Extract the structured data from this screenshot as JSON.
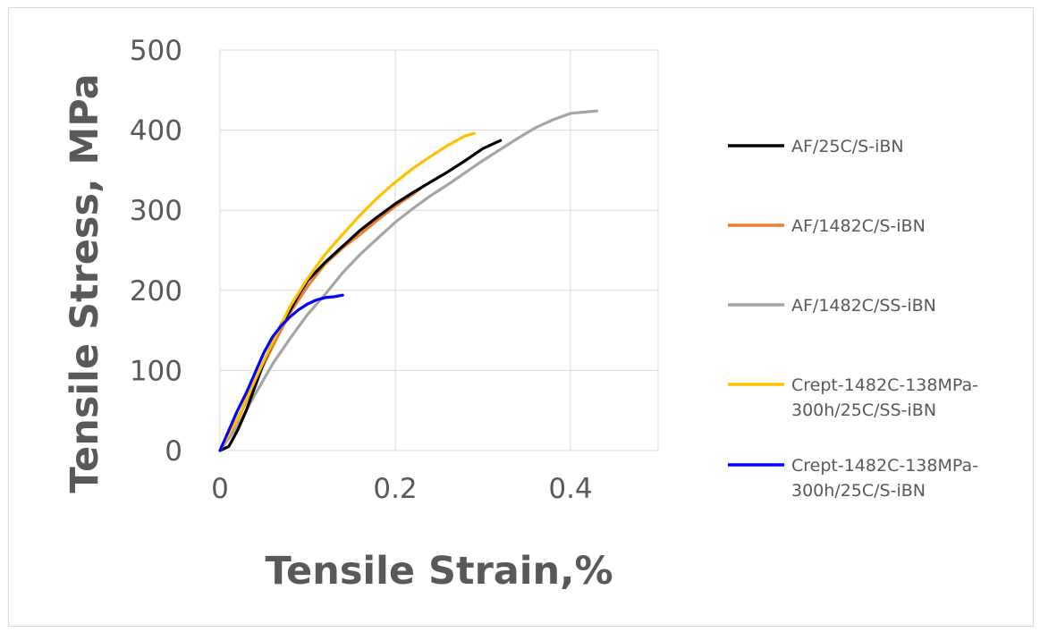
{
  "chart_data": {
    "type": "line",
    "title": "",
    "xlabel": "Tensile Strain,%",
    "ylabel": "Tensile Stress, MPa",
    "xlim": [
      0,
      0.5
    ],
    "ylim": [
      0,
      500
    ],
    "x_ticks": [
      0,
      0.2,
      0.4
    ],
    "x_tick_labels": [
      "0",
      "0.2",
      "0.4"
    ],
    "y_ticks": [
      0,
      100,
      200,
      300,
      400,
      500
    ],
    "y_tick_labels": [
      "0",
      "100",
      "200",
      "300",
      "400",
      "500"
    ],
    "grid": "horizontal and vertical",
    "legend_position": "right",
    "series": [
      {
        "name": "AF/25C/S-iBN",
        "legend_lines": [
          "AF/25C/S-iBN"
        ],
        "color": "#000000",
        "points": [
          [
            0.0,
            0
          ],
          [
            0.01,
            5
          ],
          [
            0.02,
            25
          ],
          [
            0.03,
            50
          ],
          [
            0.04,
            80
          ],
          [
            0.05,
            110
          ],
          [
            0.06,
            135
          ],
          [
            0.07,
            158
          ],
          [
            0.08,
            175
          ],
          [
            0.09,
            195
          ],
          [
            0.1,
            212
          ],
          [
            0.12,
            235
          ],
          [
            0.14,
            255
          ],
          [
            0.16,
            275
          ],
          [
            0.18,
            292
          ],
          [
            0.2,
            308
          ],
          [
            0.22,
            322
          ],
          [
            0.24,
            335
          ],
          [
            0.26,
            348
          ],
          [
            0.28,
            362
          ],
          [
            0.3,
            377
          ],
          [
            0.32,
            387
          ]
        ]
      },
      {
        "name": "AF/1482C/S-iBN",
        "legend_lines": [
          "AF/1482C/S-iBN"
        ],
        "color": "#ed7d31",
        "points": [
          [
            0.0,
            0
          ],
          [
            0.02,
            38
          ],
          [
            0.04,
            85
          ],
          [
            0.06,
            130
          ],
          [
            0.08,
            172
          ],
          [
            0.1,
            205
          ],
          [
            0.12,
            233
          ],
          [
            0.14,
            253
          ],
          [
            0.16,
            270
          ],
          [
            0.18,
            288
          ],
          [
            0.2,
            305
          ],
          [
            0.22,
            320
          ],
          [
            0.23,
            328
          ]
        ]
      },
      {
        "name": "AF/1482C/SS-iBN",
        "legend_lines": [
          "AF/1482C/SS-iBN"
        ],
        "color": "#a5a5a5",
        "points": [
          [
            0.0,
            0
          ],
          [
            0.02,
            30
          ],
          [
            0.04,
            70
          ],
          [
            0.06,
            108
          ],
          [
            0.08,
            140
          ],
          [
            0.1,
            170
          ],
          [
            0.12,
            195
          ],
          [
            0.14,
            222
          ],
          [
            0.16,
            245
          ],
          [
            0.18,
            265
          ],
          [
            0.2,
            285
          ],
          [
            0.22,
            302
          ],
          [
            0.24,
            318
          ],
          [
            0.26,
            332
          ],
          [
            0.28,
            347
          ],
          [
            0.3,
            362
          ],
          [
            0.32,
            376
          ],
          [
            0.34,
            390
          ],
          [
            0.36,
            403
          ],
          [
            0.38,
            413
          ],
          [
            0.4,
            421
          ],
          [
            0.42,
            423
          ],
          [
            0.43,
            424
          ]
        ]
      },
      {
        "name": "Crept-1482C-138MPa-300h/25C/SS-iBN",
        "legend_lines": [
          "Crept-1482C-138MPa-",
          "300h/25C/SS-iBN"
        ],
        "color": "#ffc000",
        "points": [
          [
            0.0,
            0
          ],
          [
            0.02,
            40
          ],
          [
            0.04,
            88
          ],
          [
            0.06,
            135
          ],
          [
            0.08,
            180
          ],
          [
            0.1,
            215
          ],
          [
            0.12,
            245
          ],
          [
            0.14,
            270
          ],
          [
            0.16,
            294
          ],
          [
            0.18,
            316
          ],
          [
            0.2,
            335
          ],
          [
            0.22,
            352
          ],
          [
            0.24,
            367
          ],
          [
            0.26,
            381
          ],
          [
            0.28,
            393
          ],
          [
            0.29,
            396
          ]
        ]
      },
      {
        "name": "Crept-1482C-138MPa-300h/25C/S-iBN",
        "legend_lines": [
          "Crept-1482C-138MPa-",
          "300h/25C/S-iBN"
        ],
        "color": "#0000ff",
        "points": [
          [
            0.0,
            0
          ],
          [
            0.01,
            25
          ],
          [
            0.02,
            50
          ],
          [
            0.03,
            72
          ],
          [
            0.04,
            97
          ],
          [
            0.05,
            122
          ],
          [
            0.06,
            142
          ],
          [
            0.07,
            156
          ],
          [
            0.08,
            167
          ],
          [
            0.09,
            176
          ],
          [
            0.1,
            183
          ],
          [
            0.11,
            188
          ],
          [
            0.12,
            191
          ],
          [
            0.13,
            192
          ],
          [
            0.14,
            194
          ]
        ]
      }
    ]
  }
}
